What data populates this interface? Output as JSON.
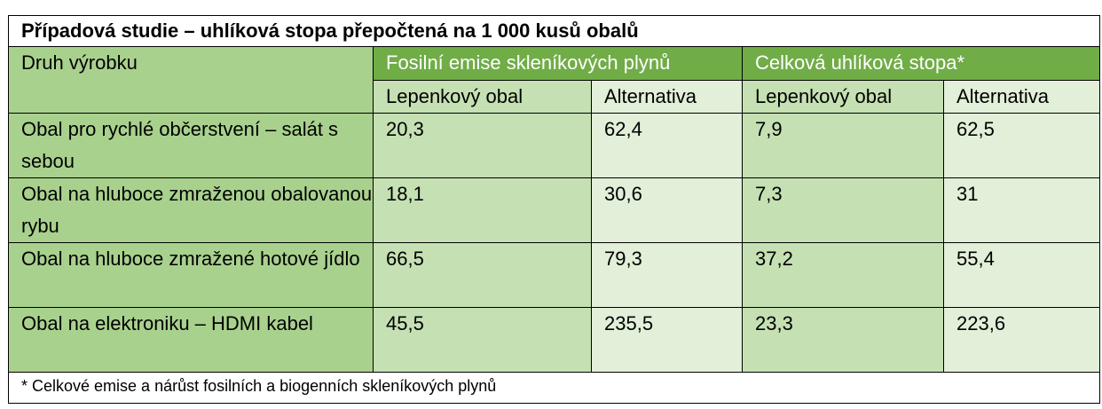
{
  "table": {
    "title": "Případová studie – uhlíková stopa přepočtená na 1 000 kusů obalů",
    "row_header": "Druh výrobku",
    "groups": [
      "Fosilní emise skleníkových plynů",
      "Celková uhlíková stopa*"
    ],
    "subheaders": [
      "Lepenkový obal",
      "Alternativa",
      "Lepenkový obal",
      "Alternativa"
    ],
    "rows": [
      {
        "product": "Obal pro rychlé občerstvení – salát s sebou",
        "values": [
          "20,3",
          "62,4",
          "7,9",
          "62,5"
        ]
      },
      {
        "product": "Obal na hluboce zmraženou obalovanou rybu",
        "values": [
          "18,1",
          "30,6",
          "7,3",
          "31"
        ]
      },
      {
        "product": "Obal na hluboce zmražené hotové jídlo",
        "values": [
          "66,5",
          "79,3",
          "37,2",
          "55,4"
        ]
      },
      {
        "product": "Obal na elektroniku – HDMI kabel",
        "values": [
          "45,5",
          "235,5",
          "23,3",
          "223,6"
        ]
      }
    ],
    "footnote": "* Celkové emise a nárůst fosilních a biogenních skleníkových plynů"
  }
}
